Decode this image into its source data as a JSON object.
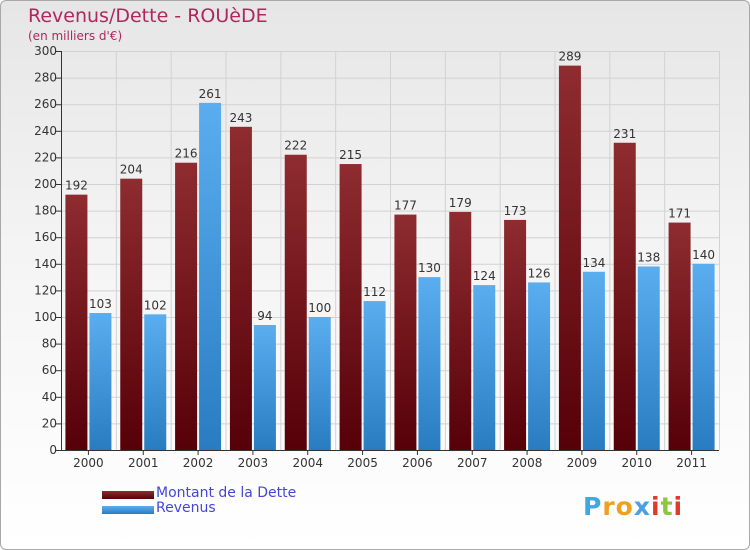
{
  "title": "Revenus/Dette - ROUèDE",
  "subtitle": "(en milliers d'€)",
  "chart_data": {
    "type": "bar",
    "categories": [
      "2000",
      "2001",
      "2002",
      "2003",
      "2004",
      "2005",
      "2006",
      "2007",
      "2008",
      "2009",
      "2010",
      "2011"
    ],
    "series": [
      {
        "name": "Montant de la Dette",
        "color": "#7a1e24",
        "values": [
          192,
          204,
          216,
          243,
          222,
          215,
          177,
          179,
          173,
          289,
          231,
          171
        ]
      },
      {
        "name": "Revenus",
        "color": "#4aa0e0",
        "values": [
          103,
          102,
          261,
          94,
          100,
          112,
          130,
          124,
          126,
          134,
          138,
          140
        ]
      }
    ],
    "ylim": [
      0,
      300
    ],
    "yticks": [
      0,
      20,
      40,
      60,
      80,
      100,
      120,
      140,
      160,
      180,
      200,
      220,
      240,
      260,
      280,
      300
    ],
    "grid": true,
    "legend_placement": "bottom-left"
  },
  "legend": {
    "items": [
      {
        "label": "Montant de la Dette",
        "color": "#7a1e24"
      },
      {
        "label": "Revenus",
        "color": "#4aa0e0"
      }
    ]
  },
  "logo": {
    "letters": [
      "P",
      "r",
      "o",
      "x",
      "i",
      "t",
      "i"
    ],
    "colors": [
      "#3fa8e0",
      "#f0a020",
      "#f0a020",
      "#4aa0e0",
      "#e03a2a",
      "#8cc63f",
      "#e03a2a"
    ]
  }
}
